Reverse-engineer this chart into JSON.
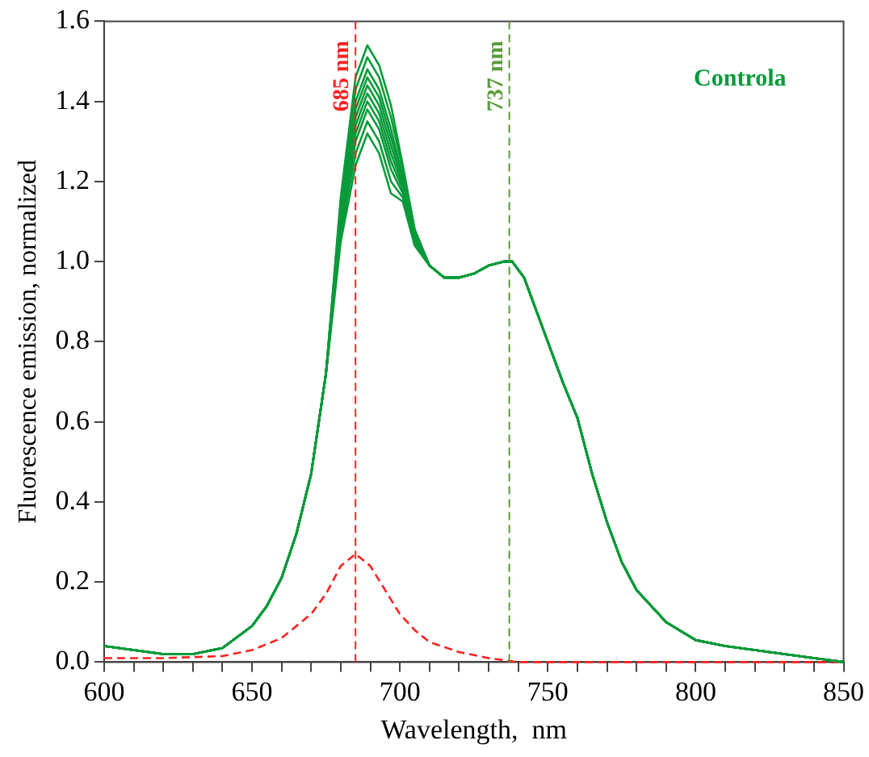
{
  "chart_data": {
    "type": "line",
    "xlabel": "Wavelength,  nm",
    "ylabel": "Fluorescence emission, normalized",
    "annotations": [
      "Controla"
    ],
    "x": [
      600,
      610,
      620,
      630,
      640,
      650,
      655,
      660,
      665,
      670,
      675,
      680,
      685,
      689,
      693,
      697,
      701,
      705,
      710,
      715,
      720,
      725,
      730,
      735,
      738,
      742,
      746,
      750,
      755,
      760,
      765,
      770,
      775,
      780,
      790,
      800,
      810,
      820,
      830,
      840,
      850
    ],
    "series": [
      {
        "color": "#0a9a3a",
        "values": [
          0.04,
          0.03,
          0.02,
          0.02,
          0.035,
          0.09,
          0.14,
          0.21,
          0.32,
          0.47,
          0.72,
          1.16,
          1.46,
          1.54,
          1.49,
          1.39,
          1.24,
          1.08,
          0.99,
          0.96,
          0.96,
          0.97,
          0.99,
          1.0,
          1.0,
          0.96,
          0.88,
          0.8,
          0.7,
          0.61,
          0.47,
          0.35,
          0.25,
          0.18,
          0.1,
          0.055,
          0.04,
          0.03,
          0.02,
          0.01,
          0
        ]
      },
      {
        "color": "#0a9a3a",
        "values": [
          0.04,
          0.03,
          0.02,
          0.02,
          0.035,
          0.09,
          0.14,
          0.21,
          0.32,
          0.47,
          0.72,
          1.15,
          1.43,
          1.51,
          1.46,
          1.36,
          1.23,
          1.08,
          0.99,
          0.96,
          0.96,
          0.97,
          0.99,
          1.0,
          1.0,
          0.96,
          0.88,
          0.8,
          0.7,
          0.61,
          0.47,
          0.35,
          0.25,
          0.18,
          0.1,
          0.055,
          0.04,
          0.03,
          0.02,
          0.01,
          0
        ]
      },
      {
        "color": "#0a9a3a",
        "values": [
          0.04,
          0.03,
          0.02,
          0.02,
          0.035,
          0.09,
          0.14,
          0.21,
          0.32,
          0.47,
          0.72,
          1.13,
          1.4,
          1.48,
          1.43,
          1.33,
          1.21,
          1.07,
          0.99,
          0.96,
          0.96,
          0.97,
          0.99,
          1.0,
          1.0,
          0.96,
          0.88,
          0.8,
          0.7,
          0.61,
          0.47,
          0.35,
          0.25,
          0.18,
          0.1,
          0.055,
          0.04,
          0.03,
          0.02,
          0.01,
          0
        ]
      },
      {
        "color": "#0a9a3a",
        "values": [
          0.04,
          0.03,
          0.02,
          0.02,
          0.035,
          0.09,
          0.14,
          0.21,
          0.32,
          0.47,
          0.72,
          1.12,
          1.38,
          1.46,
          1.41,
          1.31,
          1.21,
          1.07,
          0.99,
          0.96,
          0.96,
          0.97,
          0.99,
          1.0,
          1.0,
          0.96,
          0.88,
          0.8,
          0.7,
          0.61,
          0.47,
          0.35,
          0.25,
          0.18,
          0.1,
          0.055,
          0.04,
          0.03,
          0.02,
          0.01,
          0
        ]
      },
      {
        "color": "#0a9a3a",
        "values": [
          0.04,
          0.03,
          0.02,
          0.02,
          0.035,
          0.09,
          0.14,
          0.21,
          0.32,
          0.47,
          0.72,
          1.11,
          1.36,
          1.44,
          1.39,
          1.29,
          1.2,
          1.06,
          0.99,
          0.96,
          0.96,
          0.97,
          0.99,
          1.0,
          1.0,
          0.96,
          0.88,
          0.8,
          0.7,
          0.61,
          0.47,
          0.35,
          0.25,
          0.18,
          0.1,
          0.055,
          0.04,
          0.03,
          0.02,
          0.01,
          0
        ]
      },
      {
        "color": "#0a9a3a",
        "values": [
          0.04,
          0.03,
          0.02,
          0.02,
          0.035,
          0.09,
          0.14,
          0.21,
          0.32,
          0.47,
          0.72,
          1.1,
          1.34,
          1.42,
          1.37,
          1.27,
          1.19,
          1.06,
          0.99,
          0.96,
          0.96,
          0.97,
          0.99,
          1.0,
          1.0,
          0.96,
          0.88,
          0.8,
          0.7,
          0.61,
          0.47,
          0.35,
          0.25,
          0.18,
          0.1,
          0.055,
          0.04,
          0.03,
          0.02,
          0.01,
          0
        ]
      },
      {
        "color": "#0a9a3a",
        "values": [
          0.04,
          0.03,
          0.02,
          0.02,
          0.035,
          0.09,
          0.14,
          0.21,
          0.32,
          0.47,
          0.72,
          1.09,
          1.32,
          1.4,
          1.35,
          1.25,
          1.18,
          1.06,
          0.99,
          0.96,
          0.96,
          0.97,
          0.99,
          1.0,
          1.0,
          0.96,
          0.88,
          0.8,
          0.7,
          0.61,
          0.47,
          0.35,
          0.25,
          0.18,
          0.1,
          0.055,
          0.04,
          0.03,
          0.02,
          0.01,
          0
        ]
      },
      {
        "color": "#0a9a3a",
        "values": [
          0.04,
          0.03,
          0.02,
          0.02,
          0.035,
          0.09,
          0.14,
          0.21,
          0.32,
          0.47,
          0.72,
          1.08,
          1.3,
          1.38,
          1.33,
          1.23,
          1.17,
          1.05,
          0.99,
          0.96,
          0.96,
          0.97,
          0.99,
          1.0,
          1.0,
          0.96,
          0.88,
          0.8,
          0.7,
          0.61,
          0.47,
          0.35,
          0.25,
          0.18,
          0.1,
          0.055,
          0.04,
          0.03,
          0.02,
          0.01,
          0
        ]
      },
      {
        "color": "#0a9a3a",
        "values": [
          0.04,
          0.03,
          0.02,
          0.02,
          0.035,
          0.09,
          0.14,
          0.21,
          0.32,
          0.47,
          0.72,
          1.07,
          1.27,
          1.35,
          1.3,
          1.2,
          1.16,
          1.05,
          0.99,
          0.96,
          0.96,
          0.97,
          0.99,
          1.0,
          1.0,
          0.96,
          0.88,
          0.8,
          0.7,
          0.61,
          0.47,
          0.35,
          0.25,
          0.18,
          0.1,
          0.055,
          0.04,
          0.03,
          0.02,
          0.01,
          0
        ]
      },
      {
        "color": "#0a9a3a",
        "values": [
          0.04,
          0.03,
          0.02,
          0.02,
          0.035,
          0.09,
          0.14,
          0.21,
          0.32,
          0.47,
          0.72,
          1.05,
          1.24,
          1.32,
          1.27,
          1.17,
          1.15,
          1.04,
          0.99,
          0.96,
          0.96,
          0.97,
          0.99,
          1.0,
          1.0,
          0.96,
          0.88,
          0.8,
          0.7,
          0.61,
          0.47,
          0.35,
          0.25,
          0.18,
          0.1,
          0.055,
          0.04,
          0.03,
          0.02,
          0.01,
          0
        ]
      },
      {
        "color": "#ff2020",
        "line_style": "dashed",
        "x": [
          600,
          620,
          640,
          650,
          660,
          670,
          675,
          680,
          685,
          690,
          695,
          700,
          705,
          710,
          720,
          730,
          740,
          760,
          800,
          850
        ],
        "values": [
          0.01,
          0.01,
          0.015,
          0.03,
          0.06,
          0.12,
          0.17,
          0.24,
          0.27,
          0.24,
          0.18,
          0.12,
          0.08,
          0.05,
          0.025,
          0.01,
          0,
          0,
          0,
          0
        ]
      }
    ],
    "xlim": [
      600,
      850
    ],
    "xticks": [
      600,
      {
        "value": 610,
        "label": null
      },
      {
        "value": 620,
        "label": null
      },
      {
        "value": 630,
        "label": null
      },
      {
        "value": 640,
        "label": null
      },
      650,
      {
        "value": 660,
        "label": null
      },
      {
        "value": 670,
        "label": null
      },
      {
        "value": 680,
        "label": null
      },
      {
        "value": 690,
        "label": null
      },
      700,
      {
        "value": 710,
        "label": null
      },
      {
        "value": 720,
        "label": null
      },
      {
        "value": 730,
        "label": null
      },
      {
        "value": 740,
        "label": null
      },
      750,
      {
        "value": 760,
        "label": null
      },
      {
        "value": 770,
        "label": null
      },
      {
        "value": 780,
        "label": null
      },
      {
        "value": 790,
        "label": null
      },
      800,
      {
        "value": 810,
        "label": null
      },
      {
        "value": 820,
        "label": null
      },
      {
        "value": 830,
        "label": null
      },
      {
        "value": 840,
        "label": null
      },
      850
    ],
    "ylim": [
      0,
      1.6
    ],
    "yticks": [
      {
        "value": 0,
        "label": "0.0"
      },
      {
        "value": 0.2,
        "label": "0.2"
      },
      {
        "value": 0.4,
        "label": "0.4"
      },
      {
        "value": 0.6,
        "label": "0.6"
      },
      {
        "value": 0.8,
        "label": "0.8"
      },
      {
        "value": 1,
        "label": "1.0"
      },
      {
        "value": 1.2,
        "label": "1.2"
      },
      {
        "value": 1.4,
        "label": "1.4"
      },
      {
        "value": 1.6,
        "label": "1.6"
      }
    ],
    "ref_lines": [
      {
        "axis": "x",
        "value": 685,
        "label": "685 nm",
        "color": "#ff2020",
        "line_style": "dashed"
      },
      {
        "axis": "x",
        "value": 737,
        "label": "737 nm",
        "color": "#5a9a3a",
        "line_style": "dashed"
      }
    ],
    "grid": false,
    "legend": false,
    "marker": "none",
    "line_style": "solid"
  }
}
